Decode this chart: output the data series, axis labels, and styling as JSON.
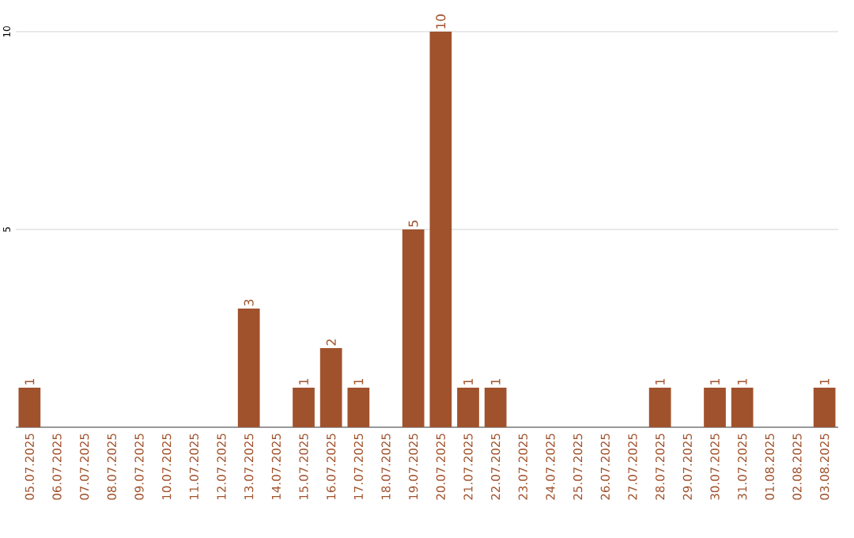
{
  "chart_data": {
    "type": "bar",
    "categories": [
      "05.07.2025",
      "06.07.2025",
      "07.07.2025",
      "08.07.2025",
      "09.07.2025",
      "10.07.2025",
      "11.07.2025",
      "12.07.2025",
      "13.07.2025",
      "14.07.2025",
      "15.07.2025",
      "16.07.2025",
      "17.07.2025",
      "18.07.2025",
      "19.07.2025",
      "20.07.2025",
      "21.07.2025",
      "22.07.2025",
      "23.07.2025",
      "24.07.2025",
      "25.07.2025",
      "26.07.2025",
      "27.07.2025",
      "28.07.2025",
      "29.07.2025",
      "30.07.2025",
      "31.07.2025",
      "01.08.2025",
      "02.08.2025",
      "03.08.2025"
    ],
    "values": [
      1,
      0,
      0,
      0,
      0,
      0,
      0,
      0,
      3,
      0,
      1,
      2,
      1,
      0,
      5,
      10,
      1,
      1,
      0,
      0,
      0,
      0,
      0,
      1,
      0,
      1,
      1,
      0,
      0,
      1
    ],
    "value_labels": [
      "1",
      null,
      null,
      null,
      null,
      null,
      null,
      null,
      "3",
      null,
      "1",
      "2",
      "1",
      null,
      "5",
      "10",
      "1",
      "1",
      null,
      null,
      null,
      null,
      null,
      "1",
      null,
      "1",
      "1",
      null,
      null,
      "1"
    ],
    "color": "#a0522d",
    "ylim": [
      0,
      10
    ],
    "yticks": [
      5,
      10
    ],
    "grid": "y"
  }
}
